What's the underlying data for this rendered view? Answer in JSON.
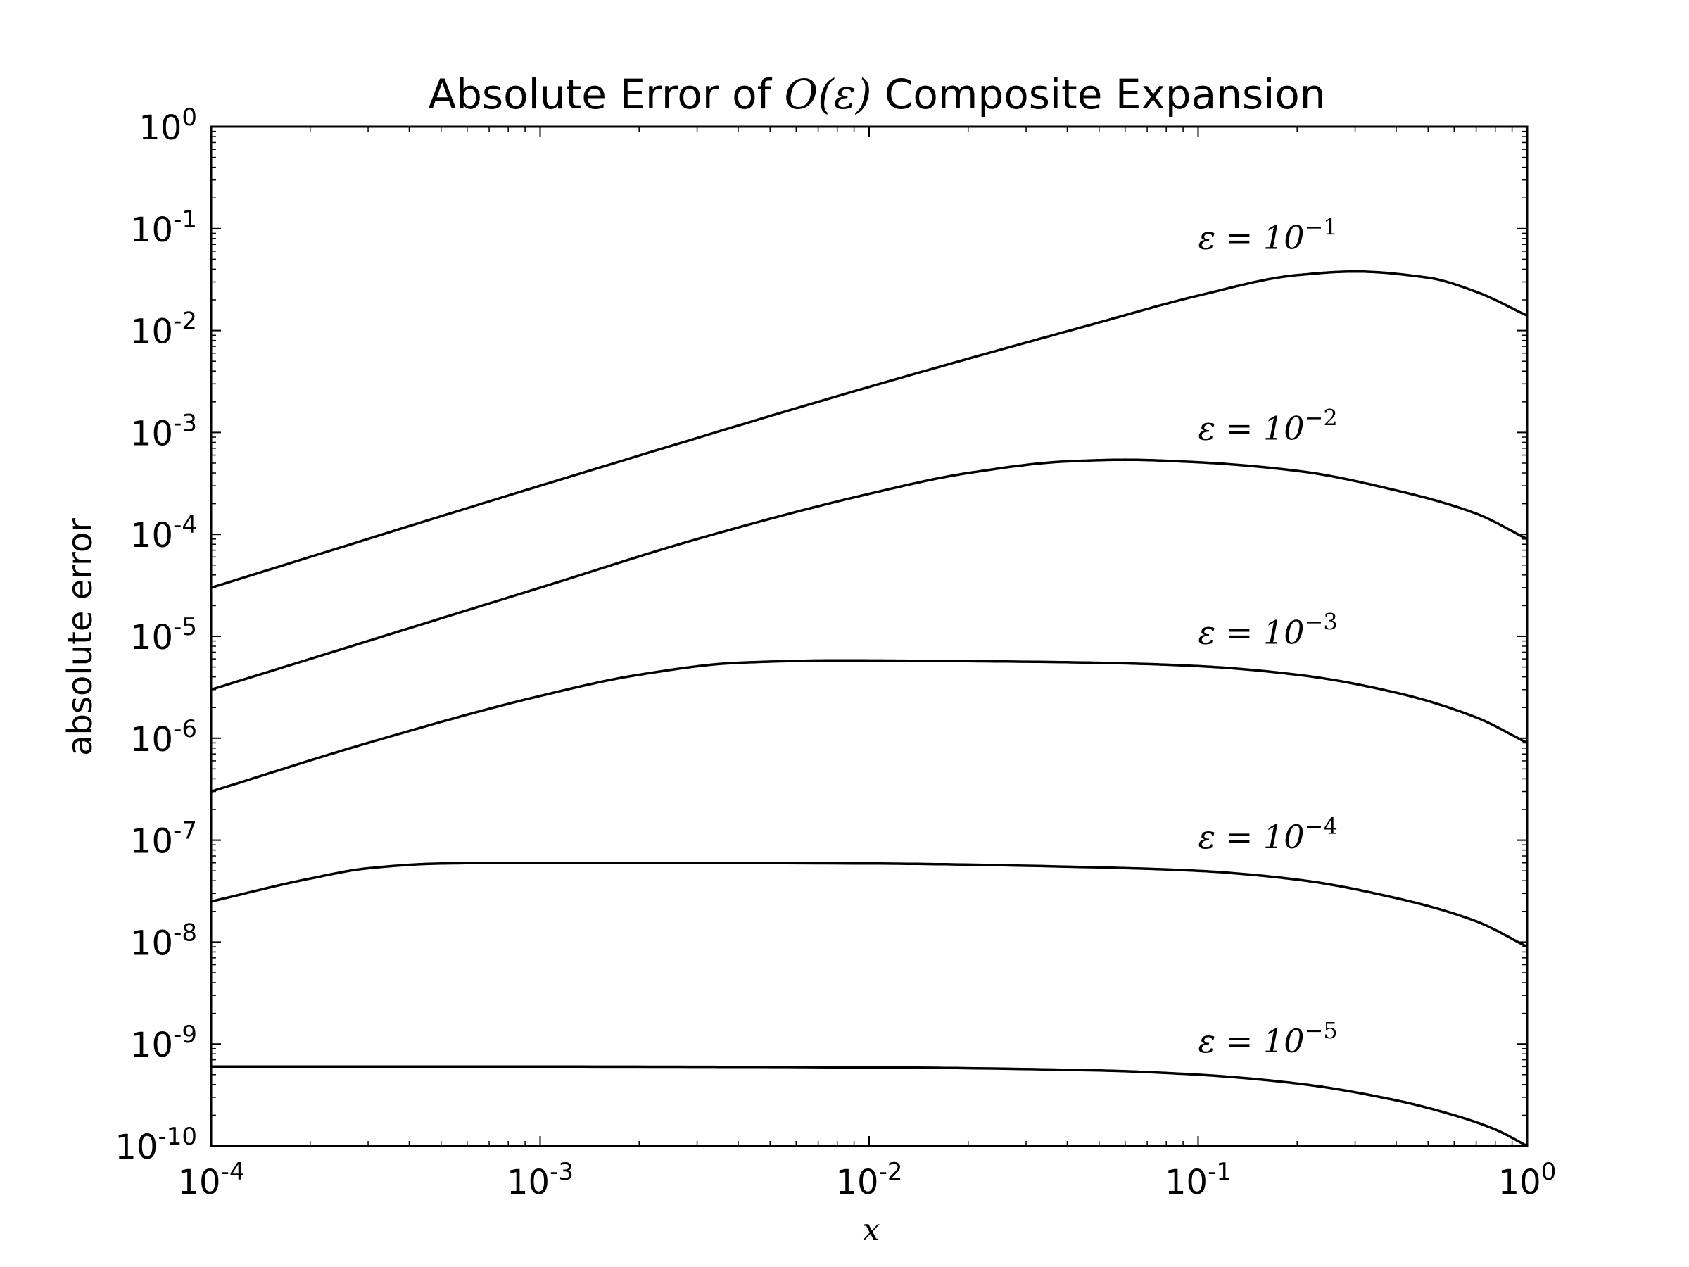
{
  "chart_data": {
    "type": "line",
    "title": {
      "prefix": "Absolute Error of ",
      "math": "O(ε)",
      "suffix": " Composite Expansion"
    },
    "xlabel": "x",
    "ylabel": "absolute error",
    "x_scale": "log",
    "y_scale": "log",
    "xlim": [
      0.0001,
      1
    ],
    "ylim": [
      1e-10,
      1
    ],
    "grid": false,
    "legend": "none",
    "x_ticks": [
      {
        "value": 0.0001,
        "base": "10",
        "exp": "-4"
      },
      {
        "value": 0.001,
        "base": "10",
        "exp": "-3"
      },
      {
        "value": 0.01,
        "base": "10",
        "exp": "-2"
      },
      {
        "value": 0.1,
        "base": "10",
        "exp": "-1"
      },
      {
        "value": 1,
        "base": "10",
        "exp": "0"
      }
    ],
    "y_ticks": [
      {
        "value": 1,
        "base": "10",
        "exp": "0"
      },
      {
        "value": 0.1,
        "base": "10",
        "exp": "-1"
      },
      {
        "value": 0.01,
        "base": "10",
        "exp": "-2"
      },
      {
        "value": 0.001,
        "base": "10",
        "exp": "-3"
      },
      {
        "value": 0.0001,
        "base": "10",
        "exp": "-4"
      },
      {
        "value": 1e-05,
        "base": "10",
        "exp": "-5"
      },
      {
        "value": 1e-06,
        "base": "10",
        "exp": "-6"
      },
      {
        "value": 1e-07,
        "base": "10",
        "exp": "-7"
      },
      {
        "value": 1e-08,
        "base": "10",
        "exp": "-8"
      },
      {
        "value": 1e-09,
        "base": "10",
        "exp": "-9"
      },
      {
        "value": 1e-10,
        "base": "10",
        "exp": "-10"
      }
    ],
    "series": [
      {
        "label_prefix": "ε = 10",
        "label_exp": "−1",
        "x": [
          0.0001,
          0.001,
          0.01,
          0.05,
          0.1,
          0.2,
          0.3,
          0.5,
          0.7,
          1.0
        ],
        "y": [
          3e-05,
          0.0003,
          0.0028,
          0.012,
          0.022,
          0.035,
          0.038,
          0.033,
          0.024,
          0.014
        ]
      },
      {
        "label_prefix": "ε = 10",
        "label_exp": "−2",
        "x": [
          0.0001,
          0.001,
          0.003,
          0.01,
          0.02,
          0.04,
          0.06,
          0.1,
          0.2,
          0.4,
          0.7,
          1.0
        ],
        "y": [
          3e-06,
          3e-05,
          9e-05,
          0.00025,
          0.0004,
          0.00052,
          0.00054,
          0.00051,
          0.00042,
          0.00027,
          0.00016,
          9e-05
        ]
      },
      {
        "label_prefix": "ε = 10",
        "label_exp": "−3",
        "x": [
          0.0001,
          0.0003,
          0.001,
          0.002,
          0.004,
          0.008,
          0.02,
          0.05,
          0.1,
          0.2,
          0.4,
          0.7,
          1.0
        ],
        "y": [
          3e-07,
          9e-07,
          2.6e-06,
          4.2e-06,
          5.5e-06,
          5.8e-06,
          5.7e-06,
          5.5e-06,
          5.1e-06,
          4.2e-06,
          2.8e-06,
          1.6e-06,
          9e-07
        ]
      },
      {
        "label_prefix": "ε = 10",
        "label_exp": "−4",
        "x": [
          0.0001,
          0.0002,
          0.0003,
          0.0005,
          0.001,
          0.01,
          0.05,
          0.1,
          0.2,
          0.4,
          0.7,
          1.0
        ],
        "y": [
          2.5e-08,
          4.2e-08,
          5.3e-08,
          5.9e-08,
          6e-08,
          5.9e-08,
          5.4e-08,
          5e-08,
          4.1e-08,
          2.7e-08,
          1.6e-08,
          9e-09
        ]
      },
      {
        "label_prefix": "ε = 10",
        "label_exp": "−5",
        "x": [
          0.0001,
          0.001,
          0.01,
          0.05,
          0.1,
          0.2,
          0.4,
          0.6,
          0.8,
          1.0
        ],
        "y": [
          6e-10,
          6e-10,
          5.9e-10,
          5.5e-10,
          5e-10,
          4.1e-10,
          2.8e-10,
          2e-10,
          1.45e-10,
          1e-10
        ]
      }
    ]
  }
}
